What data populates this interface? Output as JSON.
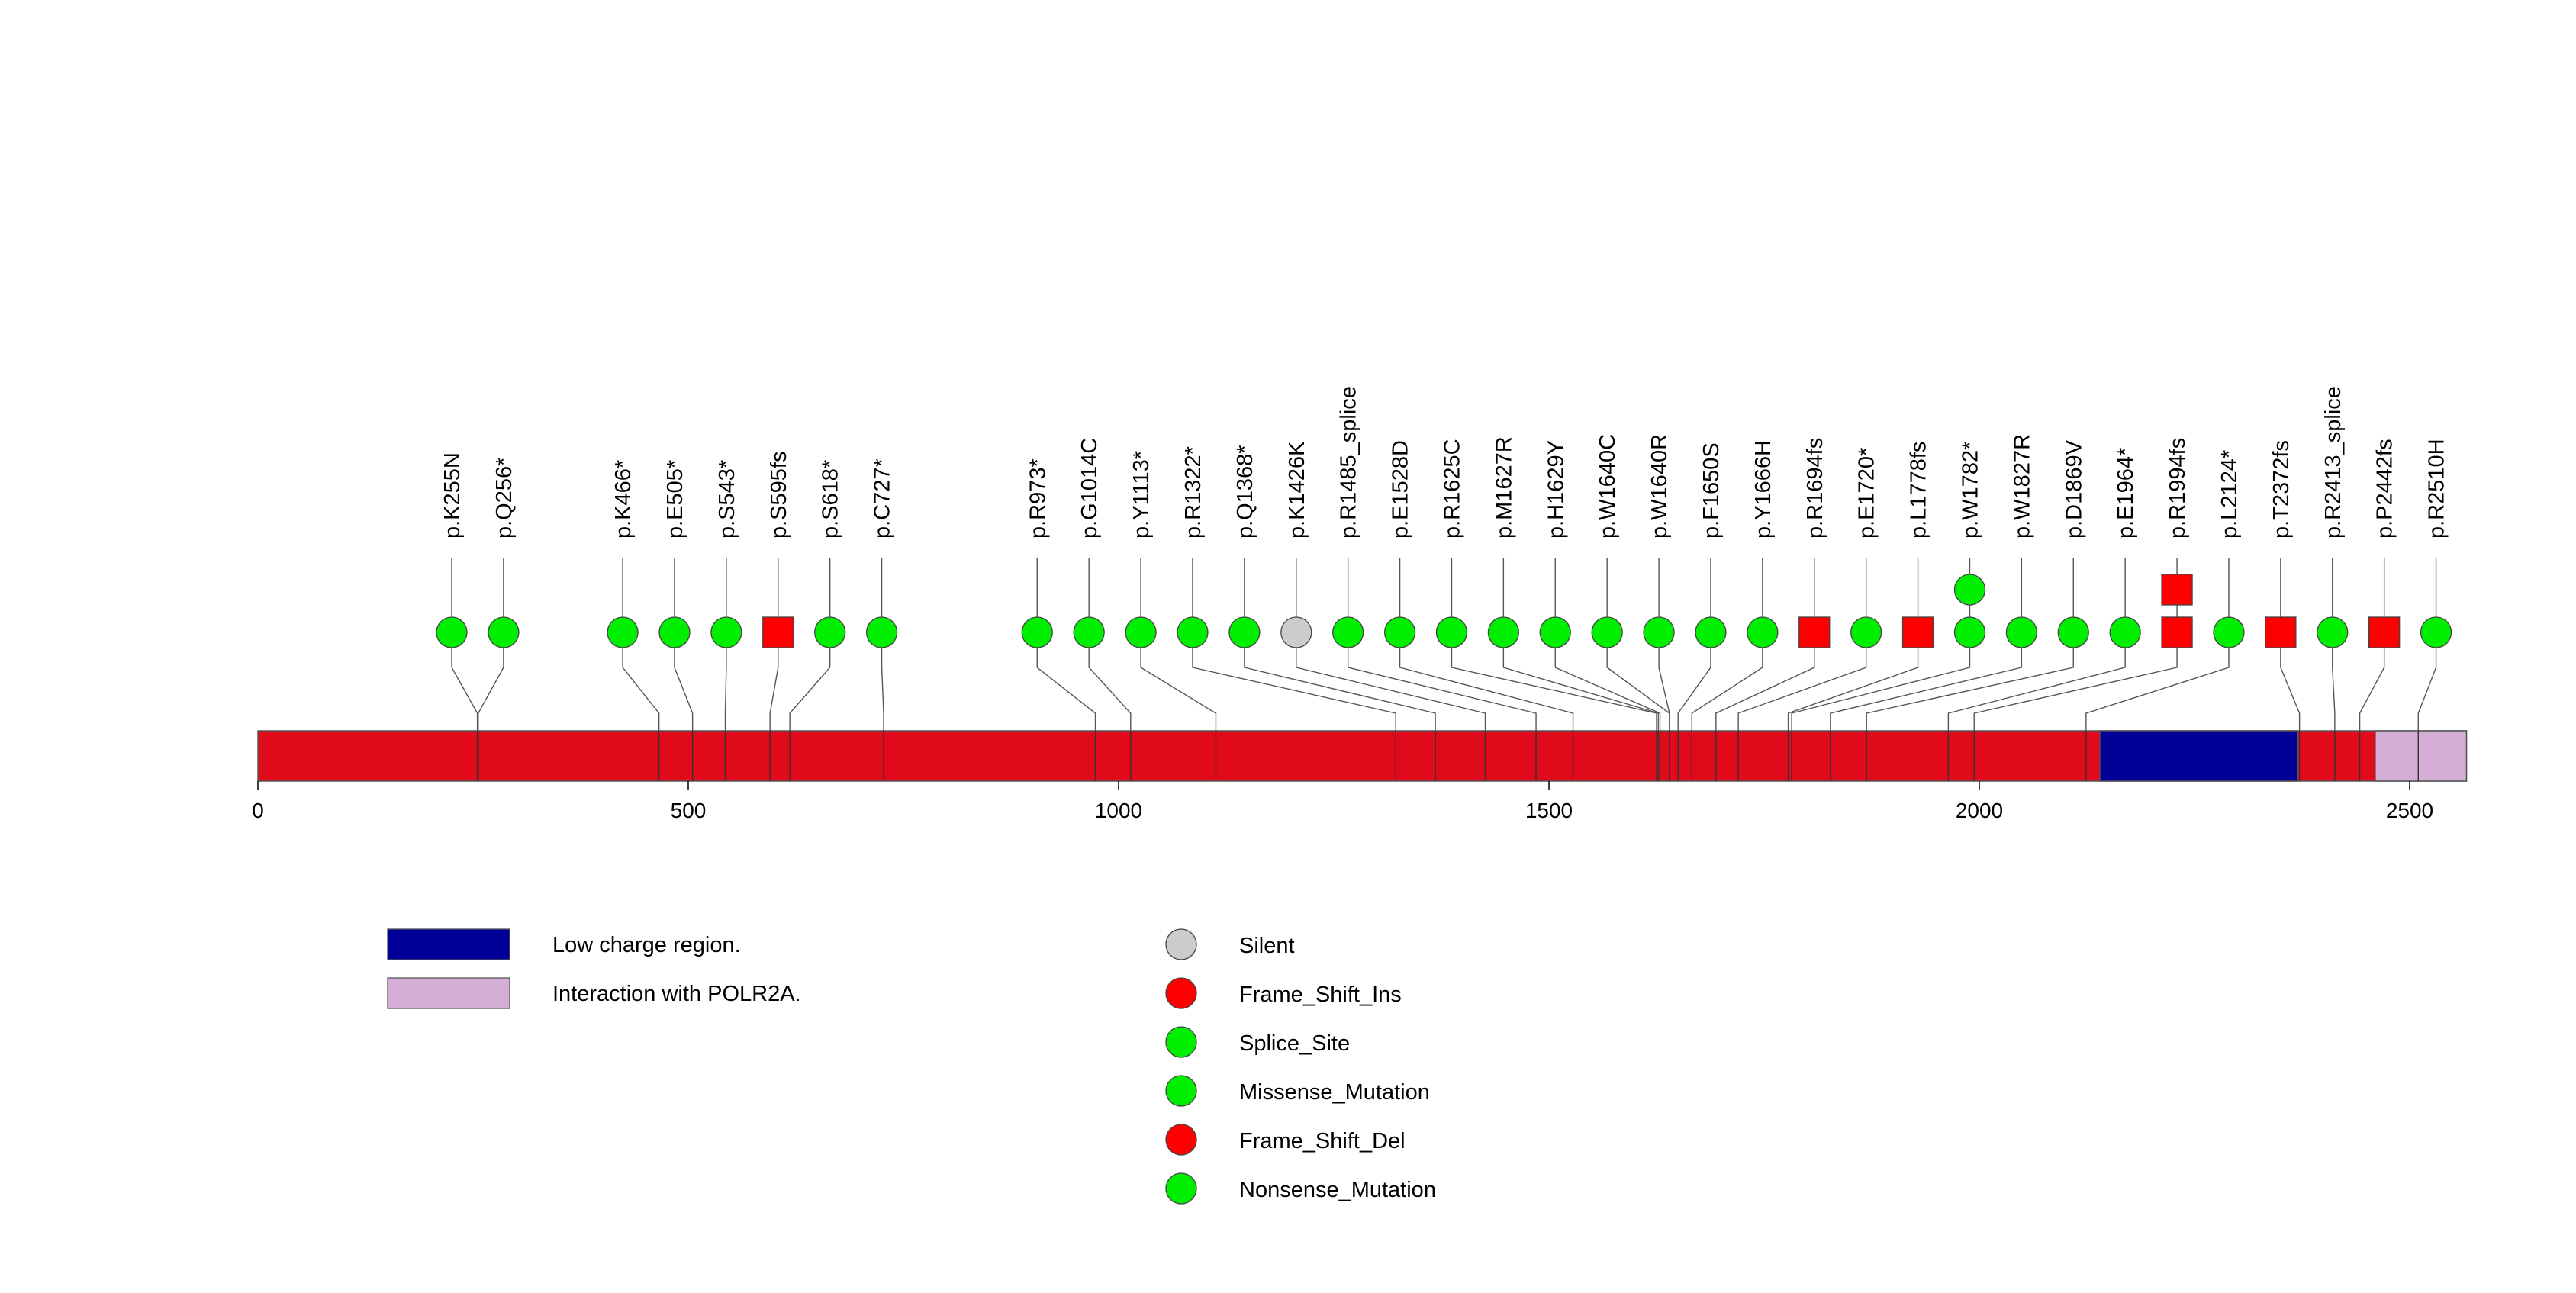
{
  "chart_data": {
    "type": "lollipop",
    "protein_length": 2566,
    "x_axis": {
      "min": 0,
      "max": 2566,
      "ticks": [
        0,
        500,
        1000,
        1500,
        2000,
        2500
      ],
      "tick_labels": [
        "0",
        "500",
        "1000",
        "1500",
        "2000",
        "2500"
      ]
    },
    "colors": {
      "backbone": "#e00a1a",
      "low_charge": "#000099",
      "polr2a": "#d4aed4",
      "green": "#00ee00",
      "red": "#ff0000",
      "grey": "#cccccc"
    },
    "domains": [
      {
        "name": "Low charge region.",
        "start": 2140,
        "end": 2370,
        "color": "#000099"
      },
      {
        "name": "Interaction with POLR2A.",
        "start": 2460,
        "end": 2566,
        "color": "#d4aed4"
      }
    ],
    "mutations": [
      {
        "label": "p.K255N",
        "position": 255,
        "type": "Missense_Mutation",
        "count": 1
      },
      {
        "label": "p.Q256*",
        "position": 256,
        "type": "Nonsense_Mutation",
        "count": 1
      },
      {
        "label": "p.K466*",
        "position": 466,
        "type": "Nonsense_Mutation",
        "count": 1
      },
      {
        "label": "p.E505*",
        "position": 505,
        "type": "Nonsense_Mutation",
        "count": 1
      },
      {
        "label": "p.S543*",
        "position": 543,
        "type": "Nonsense_Mutation",
        "count": 1
      },
      {
        "label": "p.S595fs",
        "position": 595,
        "type": "Frame_Shift_Del",
        "count": 1
      },
      {
        "label": "p.S618*",
        "position": 618,
        "type": "Nonsense_Mutation",
        "count": 1
      },
      {
        "label": "p.C727*",
        "position": 727,
        "type": "Nonsense_Mutation",
        "count": 1
      },
      {
        "label": "p.R973*",
        "position": 973,
        "type": "Nonsense_Mutation",
        "count": 1
      },
      {
        "label": "p.G1014C",
        "position": 1014,
        "type": "Missense_Mutation",
        "count": 1
      },
      {
        "label": "p.Y1113*",
        "position": 1113,
        "type": "Nonsense_Mutation",
        "count": 1
      },
      {
        "label": "p.R1322*",
        "position": 1322,
        "type": "Nonsense_Mutation",
        "count": 1
      },
      {
        "label": "p.Q1368*",
        "position": 1368,
        "type": "Nonsense_Mutation",
        "count": 1
      },
      {
        "label": "p.K1426K",
        "position": 1426,
        "type": "Silent",
        "count": 1
      },
      {
        "label": "p.R1485_splice",
        "position": 1485,
        "type": "Splice_Site",
        "count": 1
      },
      {
        "label": "p.E1528D",
        "position": 1528,
        "type": "Missense_Mutation",
        "count": 1
      },
      {
        "label": "p.R1625C",
        "position": 1625,
        "type": "Missense_Mutation",
        "count": 1
      },
      {
        "label": "p.M1627R",
        "position": 1627,
        "type": "Missense_Mutation",
        "count": 1
      },
      {
        "label": "p.H1629Y",
        "position": 1629,
        "type": "Missense_Mutation",
        "count": 1
      },
      {
        "label": "p.W1640C",
        "position": 1640,
        "type": "Missense_Mutation",
        "count": 1
      },
      {
        "label": "p.W1640R",
        "position": 1640,
        "type": "Missense_Mutation",
        "count": 1
      },
      {
        "label": "p.F1650S",
        "position": 1650,
        "type": "Missense_Mutation",
        "count": 1
      },
      {
        "label": "p.Y1666H",
        "position": 1666,
        "type": "Missense_Mutation",
        "count": 1
      },
      {
        "label": "p.R1694fs",
        "position": 1694,
        "type": "Frame_Shift_Del",
        "count": 1
      },
      {
        "label": "p.E1720*",
        "position": 1720,
        "type": "Nonsense_Mutation",
        "count": 1
      },
      {
        "label": "p.L1778fs",
        "position": 1778,
        "type": "Frame_Shift_Del",
        "count": 1
      },
      {
        "label": "p.W1782*",
        "position": 1782,
        "type": "Nonsense_Mutation",
        "count": 2
      },
      {
        "label": "p.W1827R",
        "position": 1827,
        "type": "Missense_Mutation",
        "count": 1
      },
      {
        "label": "p.D1869V",
        "position": 1869,
        "type": "Missense_Mutation",
        "count": 1
      },
      {
        "label": "p.E1964*",
        "position": 1964,
        "type": "Nonsense_Mutation",
        "count": 1
      },
      {
        "label": "p.R1994fs",
        "position": 1994,
        "type": "Frame_Shift_Del",
        "count": 2
      },
      {
        "label": "p.L2124*",
        "position": 2124,
        "type": "Nonsense_Mutation",
        "count": 1
      },
      {
        "label": "p.T2372fs",
        "position": 2372,
        "type": "Frame_Shift_Del",
        "count": 1
      },
      {
        "label": "p.R2413_splice",
        "position": 2413,
        "type": "Splice_Site",
        "count": 1
      },
      {
        "label": "p.P2442fs",
        "position": 2442,
        "type": "Frame_Shift_Del",
        "count": 1
      },
      {
        "label": "p.R2510H",
        "position": 2510,
        "type": "Missense_Mutation",
        "count": 1
      }
    ],
    "legend": {
      "domains": [
        {
          "label": "Low charge region.",
          "color": "#000099"
        },
        {
          "label": "Interaction with POLR2A.",
          "color": "#d4aed4"
        }
      ],
      "mutation_types": [
        {
          "label": "Silent",
          "color": "#cccccc"
        },
        {
          "label": "Frame_Shift_Ins",
          "color": "#ff0000"
        },
        {
          "label": "Splice_Site",
          "color": "#00ee00"
        },
        {
          "label": "Missense_Mutation",
          "color": "#00ee00"
        },
        {
          "label": "Frame_Shift_Del",
          "color": "#ff0000"
        },
        {
          "label": "Nonsense_Mutation",
          "color": "#00ee00"
        }
      ]
    }
  }
}
